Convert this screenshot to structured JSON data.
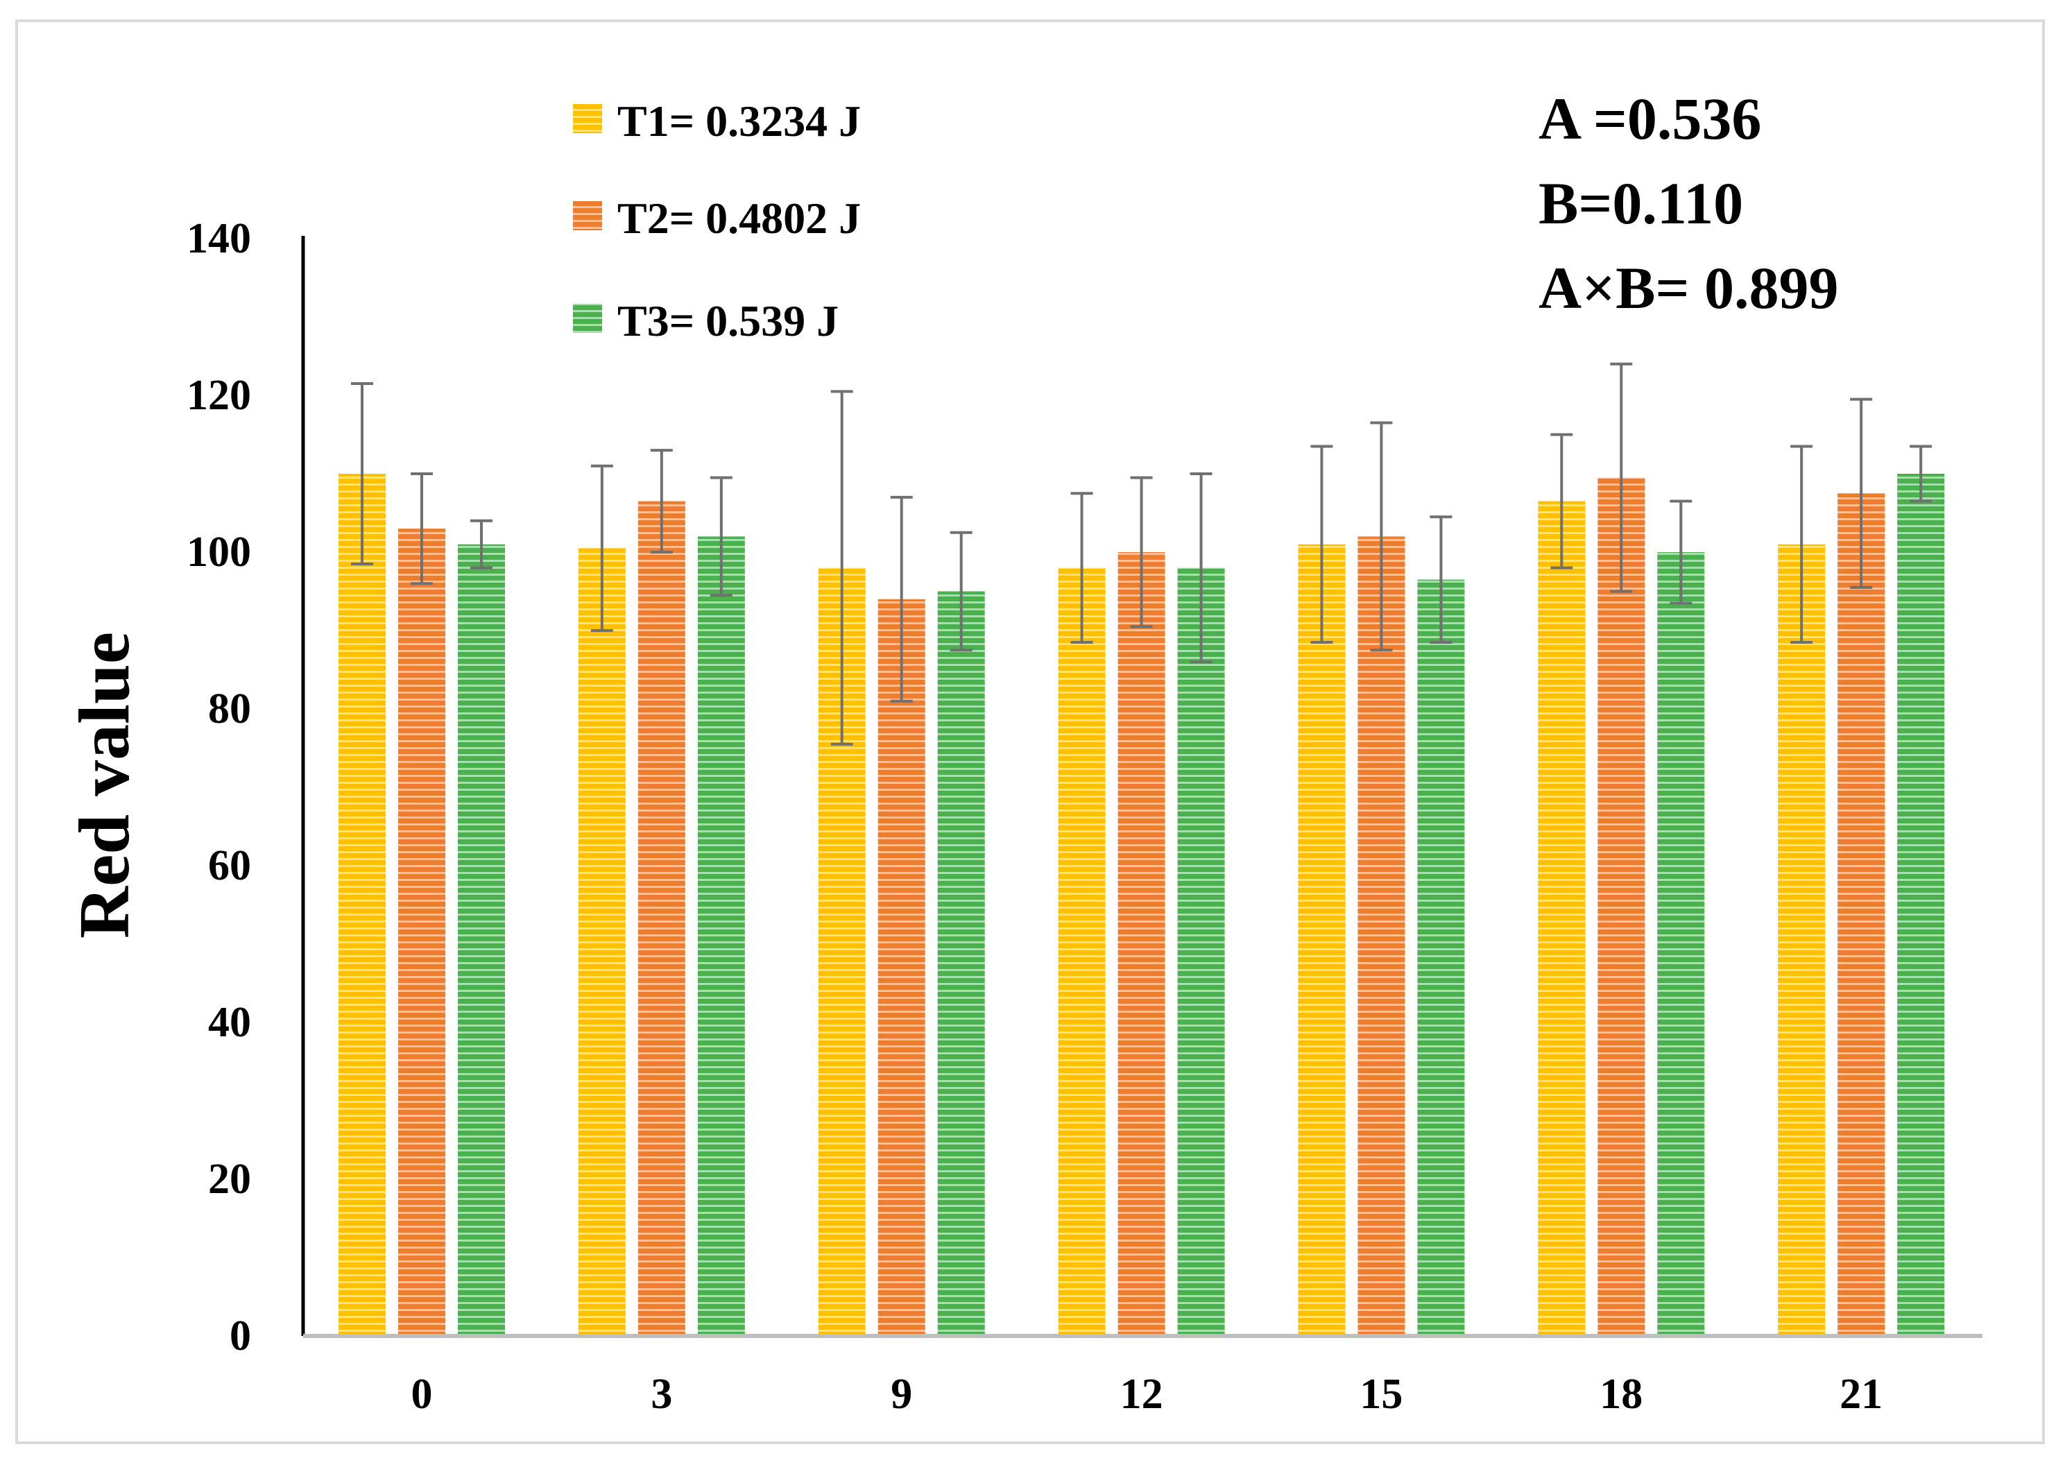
{
  "chart_data": {
    "type": "bar",
    "title": "",
    "xlabel": "",
    "ylabel": "Red value",
    "ylim": [
      0,
      140
    ],
    "yticks": [
      0,
      20,
      40,
      60,
      80,
      100,
      120,
      140
    ],
    "grid": false,
    "legend_position": "top-left",
    "categories": [
      "0",
      "3",
      "9",
      "12",
      "15",
      "18",
      "21"
    ],
    "series": [
      {
        "name": "T1= 0.3234 J",
        "color": "#FFC000",
        "values": [
          110,
          100.5,
          98,
          98,
          101,
          106.5,
          101
        ],
        "errors": [
          11.5,
          10.5,
          22.5,
          9.5,
          12.5,
          8.5,
          12.5
        ]
      },
      {
        "name": "T2= 0.4802 J",
        "color": "#ED7D31",
        "values": [
          103,
          106.5,
          94,
          100,
          102,
          109.5,
          107.5
        ],
        "errors": [
          7,
          6.5,
          13,
          9.5,
          14.5,
          14.5,
          12
        ]
      },
      {
        "name": "T3= 0.539 J",
        "color": "#4CAF50",
        "values": [
          101,
          102,
          95,
          98,
          96.5,
          100,
          110
        ],
        "errors": [
          3,
          7.5,
          7.5,
          12,
          8,
          6.5,
          3.5
        ]
      }
    ],
    "annotations": [
      "A =0.536",
      "B=0.110",
      "A×B= 0.899"
    ]
  }
}
